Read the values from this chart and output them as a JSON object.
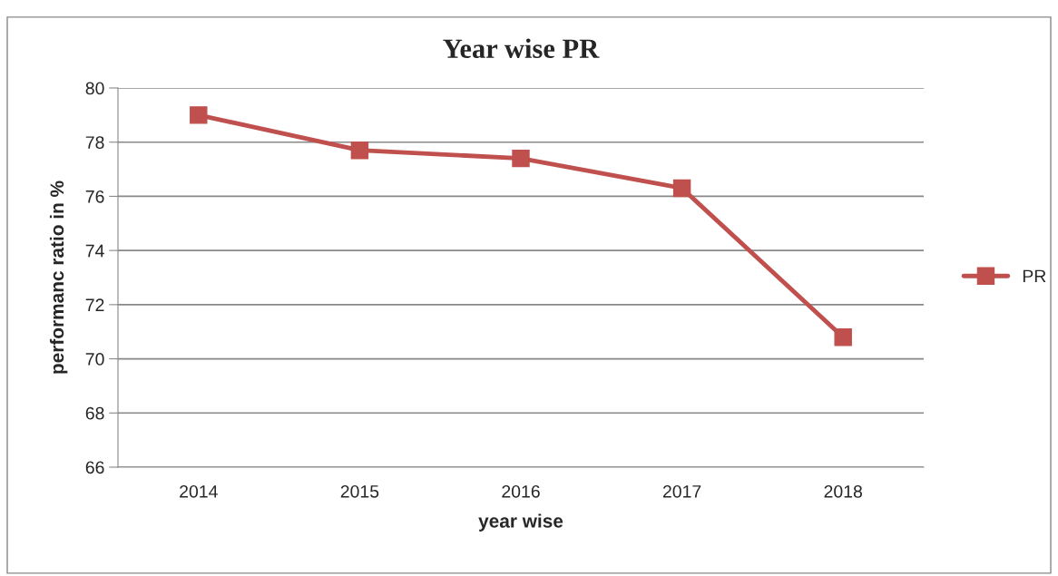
{
  "chart_data": {
    "type": "line",
    "title": "Year wise PR",
    "xlabel": "year wise",
    "ylabel": "performanc ratio in %",
    "categories": [
      "2014",
      "2015",
      "2016",
      "2017",
      "2018"
    ],
    "series": [
      {
        "name": "PR",
        "color": "#c0504d",
        "values": [
          79.0,
          77.7,
          77.4,
          76.3,
          70.8
        ]
      }
    ],
    "ylim": [
      66,
      80
    ],
    "yticks": [
      66,
      68,
      70,
      72,
      74,
      76,
      78,
      80
    ],
    "grid": "y",
    "legend": "right",
    "marker": "square",
    "line_style": "solid"
  }
}
